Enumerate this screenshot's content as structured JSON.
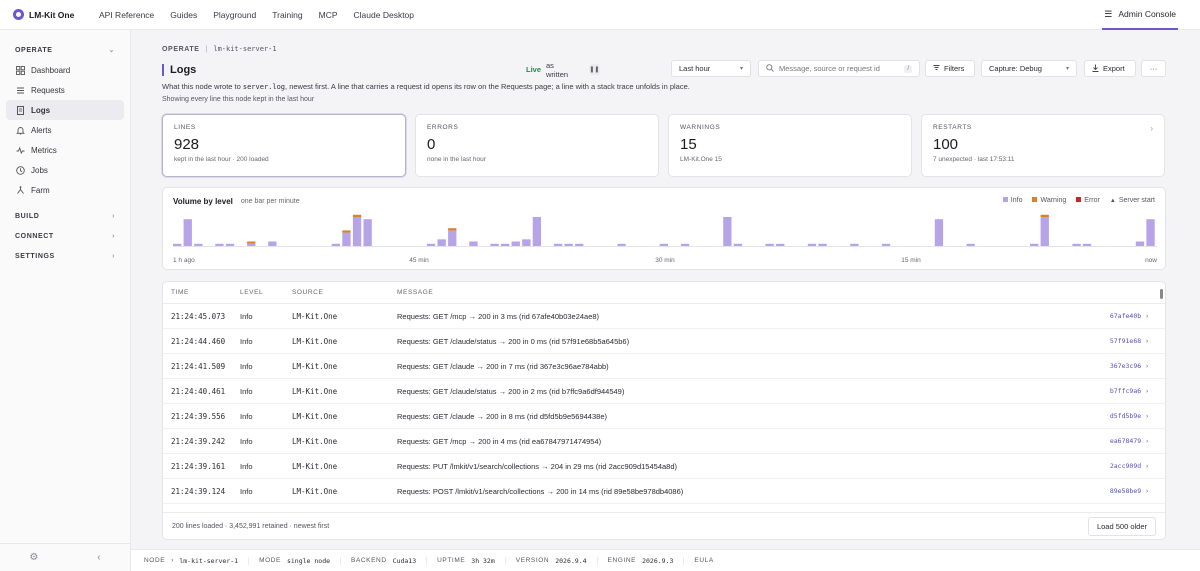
{
  "app": {
    "name": "LM-Kit One"
  },
  "topnav": [
    {
      "label": "API Reference"
    },
    {
      "label": "Guides"
    },
    {
      "label": "Playground"
    },
    {
      "label": "Training"
    },
    {
      "label": "MCP"
    },
    {
      "label": "Claude Desktop"
    }
  ],
  "admin_label": "Admin Console",
  "sidebar": {
    "sections": [
      {
        "label": "OPERATE",
        "items": [
          {
            "label": "Dashboard",
            "icon": "grid-icon"
          },
          {
            "label": "Requests",
            "icon": "list-icon"
          },
          {
            "label": "Logs",
            "icon": "file-icon"
          },
          {
            "label": "Alerts",
            "icon": "bell-icon"
          },
          {
            "label": "Metrics",
            "icon": "pulse-icon"
          },
          {
            "label": "Jobs",
            "icon": "clock-icon"
          },
          {
            "label": "Farm",
            "icon": "server-icon"
          }
        ]
      },
      {
        "label": "BUILD"
      },
      {
        "label": "CONNECT"
      },
      {
        "label": "SETTINGS"
      }
    ]
  },
  "breadcrumb": {
    "section": "OPERATE",
    "sep": "|",
    "node": "lm-kit-server-1"
  },
  "page": {
    "title": "Logs",
    "desc_a": "What this node wrote to ",
    "desc_code": "server.log",
    "desc_b": ", newest first. A line that carries a request id opens its row on the Requests page; a line with a stack trace unfolds in place.",
    "subtitle": "Showing every line this node kept in the last hour"
  },
  "controls": {
    "live": "Live",
    "live_mode": "as written",
    "range": "Last hour",
    "search_placeholder": "Message, source or request id",
    "search_key": "/",
    "filters": "Filters",
    "capture": "Capture: Debug",
    "export": "Export",
    "more": "···"
  },
  "stats": [
    {
      "label": "LINES",
      "value": "928",
      "note": "kept in the last hour · 200 loaded"
    },
    {
      "label": "ERRORS",
      "value": "0",
      "note": "none in the last hour"
    },
    {
      "label": "WARNINGS",
      "value": "15",
      "note": "LM-Kit.One 15"
    },
    {
      "label": "RESTARTS",
      "value": "100",
      "note": "7 unexpected · last 17:53:11"
    }
  ],
  "volume": {
    "title": "Volume by level",
    "subtitle": "one bar per minute",
    "legend": [
      {
        "label": "Info",
        "color": "#b7a4e6"
      },
      {
        "label": "Warning",
        "color": "#d9822b"
      },
      {
        "label": "Error",
        "color": "#c62828"
      },
      {
        "label": "Server start",
        "color": "#555555"
      }
    ],
    "axis": [
      "1 h ago",
      "45 min",
      "30 min",
      "15 min",
      "now"
    ]
  },
  "chart_data": {
    "type": "bar",
    "title": "Volume by level",
    "subtitle": "one bar per minute",
    "x_labels": [
      "1 h ago",
      "45 min",
      "30 min",
      "15 min",
      "now"
    ],
    "series": [
      {
        "name": "Info",
        "color": "#b7a4e6",
        "values": [
          1,
          12,
          1,
          0,
          1,
          1,
          0,
          1,
          0,
          2,
          0,
          0,
          0,
          0,
          0,
          1,
          6,
          13,
          12,
          0,
          0,
          0,
          0,
          0,
          1,
          3,
          7,
          0,
          2,
          0,
          1,
          1,
          2,
          3,
          13,
          0,
          1,
          1,
          1,
          0,
          0,
          0,
          1,
          0,
          0,
          0,
          1,
          0,
          1,
          0,
          0,
          0,
          13,
          1,
          0,
          0,
          1,
          1,
          0,
          0,
          1,
          1,
          0,
          0,
          1,
          0,
          0,
          1,
          0,
          0,
          0,
          0,
          12,
          0,
          0,
          1,
          0,
          0,
          0,
          0,
          0,
          1,
          13,
          0,
          0,
          1,
          1,
          0,
          0,
          0,
          0,
          2,
          12
        ]
      },
      {
        "name": "Warning",
        "color": "#d9822b",
        "values": [
          0,
          0,
          0,
          0,
          0,
          0,
          0,
          1,
          0,
          0,
          0,
          0,
          0,
          0,
          0,
          0,
          1,
          1,
          0,
          0,
          0,
          0,
          0,
          0,
          0,
          0,
          1,
          0,
          0,
          0,
          0,
          0,
          0,
          0,
          0,
          0,
          0,
          0,
          0,
          0,
          0,
          0,
          0,
          0,
          0,
          0,
          0,
          0,
          0,
          0,
          0,
          0,
          0,
          0,
          0,
          0,
          0,
          0,
          0,
          0,
          0,
          0,
          0,
          0,
          0,
          0,
          0,
          0,
          0,
          0,
          0,
          0,
          0,
          0,
          0,
          0,
          0,
          0,
          0,
          0,
          0,
          0,
          1,
          0,
          0,
          0,
          0,
          0,
          0,
          0,
          0,
          0,
          0
        ]
      },
      {
        "name": "Error",
        "color": "#c62828",
        "values": [
          0,
          0,
          0,
          0,
          0,
          0,
          0,
          0,
          0,
          0,
          0,
          0,
          0,
          0,
          0,
          0,
          0,
          0,
          0,
          0,
          0,
          0,
          0,
          0,
          0,
          0,
          0,
          0,
          0,
          0,
          0,
          0,
          0,
          0,
          0,
          0,
          0,
          0,
          0,
          0,
          0,
          0,
          0,
          0,
          0,
          0,
          0,
          0,
          0,
          0,
          0,
          0,
          0,
          0,
          0,
          0,
          0,
          0,
          0,
          0,
          0,
          0,
          0,
          0,
          0,
          0,
          0,
          0,
          0,
          0,
          0,
          0,
          0,
          0,
          0,
          0,
          0,
          0,
          0,
          0,
          0,
          0,
          0,
          0,
          0,
          0,
          0,
          0,
          0,
          0,
          0,
          0,
          0
        ]
      }
    ]
  },
  "table": {
    "headers": [
      "TIME",
      "LEVEL",
      "SOURCE",
      "MESSAGE"
    ],
    "rows": [
      {
        "time": "21:24:45.073",
        "level": "Info",
        "source": "LM-Kit.One",
        "message": "Requests: GET /mcp → 200 in 3 ms (rid 67afe40b03e24ae8)",
        "rid": "67afe40b ›"
      },
      {
        "time": "21:24:44.460",
        "level": "Info",
        "source": "LM-Kit.One",
        "message": "Requests: GET /claude/status → 200 in 0 ms (rid 57f91e68b5a645b6)",
        "rid": "57f91e68 ›"
      },
      {
        "time": "21:24:41.509",
        "level": "Info",
        "source": "LM-Kit.One",
        "message": "Requests: GET /claude → 200 in 7 ms (rid 367e3c96ae784abb)",
        "rid": "367e3c96 ›"
      },
      {
        "time": "21:24:40.461",
        "level": "Info",
        "source": "LM-Kit.One",
        "message": "Requests: GET /claude/status → 200 in 2 ms (rid b7ffc9a6df944549)",
        "rid": "b7ffc9a6 ›"
      },
      {
        "time": "21:24:39.556",
        "level": "Info",
        "source": "LM-Kit.One",
        "message": "Requests: GET /claude → 200 in 8 ms (rid d5fd5b9e5694438e)",
        "rid": "d5fd5b9e ›"
      },
      {
        "time": "21:24:39.242",
        "level": "Info",
        "source": "LM-Kit.One",
        "message": "Requests: GET /mcp → 200 in 4 ms (rid ea67847971474954)",
        "rid": "ea678479 ›"
      },
      {
        "time": "21:24:39.161",
        "level": "Info",
        "source": "LM-Kit.One",
        "message": "Requests: PUT /lmkit/v1/search/collections → 204 in 29 ms (rid 2acc909d15454a8d)",
        "rid": "2acc909d ›"
      },
      {
        "time": "21:24:39.124",
        "level": "Info",
        "source": "LM-Kit.One",
        "message": "Requests: POST /lmkit/v1/search/collections → 200 in 14 ms (rid 89e58be978db4086)",
        "rid": "89e58be9 ›"
      }
    ],
    "footer": "200 lines loaded · 3,452,991 retained · newest first",
    "load_more": "Load 500 older"
  },
  "statusbar": [
    {
      "k": "NODE",
      "sep": "›",
      "v": "lm-kit-server-1"
    },
    {
      "k": "MODE",
      "v": "single node"
    },
    {
      "k": "BACKEND",
      "v": "Cuda13"
    },
    {
      "k": "UPTIME",
      "v": "3h 32m"
    },
    {
      "k": "VERSION",
      "v": "2026.9.4"
    },
    {
      "k": "ENGINE",
      "v": "2026.9.3"
    },
    {
      "k": "EULA",
      "v": ""
    }
  ]
}
